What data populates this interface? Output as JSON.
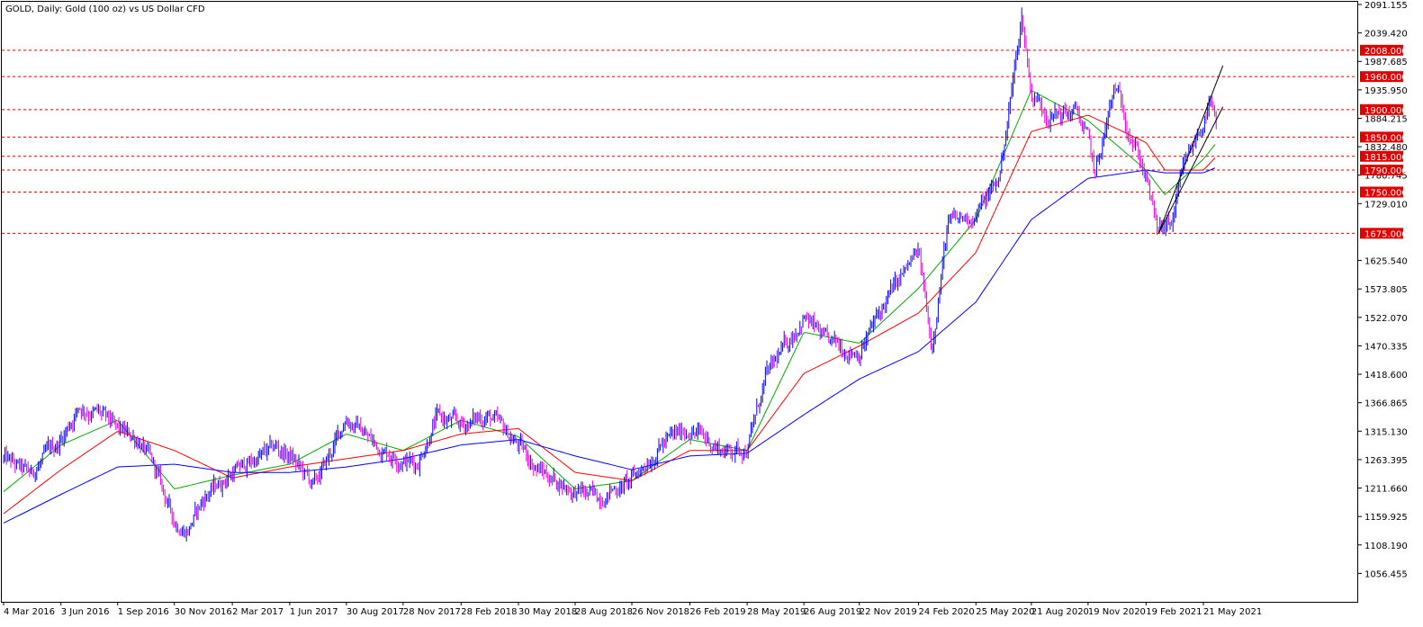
{
  "chart_data": {
    "type": "candlestick",
    "title": "GOLD, Daily:  Gold (100 oz) vs US Dollar CFD",
    "symbol": "GOLD",
    "timeframe": "Daily",
    "instrument": "Gold (100 oz) vs US Dollar CFD",
    "ylim": [
      1004.72,
      2091.155
    ],
    "y_ticks": [
      "2091.155",
      "2039.420",
      "1987.685",
      "1935.950",
      "1884.215",
      "1832.480",
      "1780.745",
      "1729.010",
      "1625.540",
      "1573.805",
      "1522.070",
      "1470.335",
      "1418.600",
      "1366.865",
      "1315.130",
      "1263.395",
      "1211.660",
      "1159.925",
      "1108.190",
      "1056.455"
    ],
    "x_ticks": [
      "4 Mar 2016",
      "3 Jun 2016",
      "1 Sep 2016",
      "30 Nov 2016",
      "2 Mar 2017",
      "1 Jun 2017",
      "30 Aug 2017",
      "28 Nov 2017",
      "28 Feb 2018",
      "30 May 2018",
      "28 Aug 2018",
      "26 Nov 2018",
      "26 Feb 2019",
      "28 May 2019",
      "26 Aug 2019",
      "22 Nov 2019",
      "24 Feb 2020",
      "25 May 2020",
      "21 Aug 2020",
      "19 Nov 2020",
      "19 Feb 2021",
      "21 May 2021"
    ],
    "price_series": {
      "name": "",
      "color": "#0000ff",
      "accent": "#e100e1",
      "points": [
        [
          "4 Mar 2016",
          1265
        ],
        [
          "15 Apr 2016",
          1235
        ],
        [
          "3 Jun 2016",
          1300
        ],
        [
          "1 Jul 2016",
          1360
        ],
        [
          "5 Aug 2016",
          1345
        ],
        [
          "1 Sep 2016",
          1315
        ],
        [
          "5 Oct 2016",
          1300
        ],
        [
          "1 Nov 2016",
          1240
        ],
        [
          "30 Nov 2016",
          1150
        ],
        [
          "20 Dec 2016",
          1135
        ],
        [
          "20 Jan 2017",
          1200
        ],
        [
          "2 Mar 2017",
          1240
        ],
        [
          "10 Apr 2017",
          1265
        ],
        [
          "10 May 2017",
          1285
        ],
        [
          "1 Jun 2017",
          1270
        ],
        [
          "10 Jul 2017",
          1215
        ],
        [
          "1 Aug 2017",
          1265
        ],
        [
          "30 Aug 2017",
          1340
        ],
        [
          "15 Sep 2017",
          1325
        ],
        [
          "20 Oct 2017",
          1285
        ],
        [
          "28 Nov 2017",
          1265
        ],
        [
          "20 Dec 2017",
          1255
        ],
        [
          "20 Jan 2018",
          1340
        ],
        [
          "28 Feb 2018",
          1325
        ],
        [
          "10 Apr 2018",
          1345
        ],
        [
          "30 May 2018",
          1290
        ],
        [
          "1 Jul 2018",
          1245
        ],
        [
          "28 Aug 2018",
          1205
        ],
        [
          "1 Oct 2018",
          1195
        ],
        [
          "26 Nov 2018",
          1225
        ],
        [
          "10 Jan 2019",
          1290
        ],
        [
          "26 Feb 2019",
          1320
        ],
        [
          "20 Apr 2019",
          1280
        ],
        [
          "28 May 2019",
          1285
        ],
        [
          "26 Jun 2019",
          1410
        ],
        [
          "26 Aug 2019",
          1525
        ],
        [
          "1 Oct 2019",
          1475
        ],
        [
          "22 Nov 2019",
          1460
        ],
        [
          "10 Jan 2020",
          1565
        ],
        [
          "24 Feb 2020",
          1640
        ],
        [
          "16 Mar 2020",
          1470
        ],
        [
          "10 Apr 2020",
          1690
        ],
        [
          "25 May 2020",
          1710
        ],
        [
          "1 Jul 2020",
          1775
        ],
        [
          "6 Aug 2020",
          2070
        ],
        [
          "21 Aug 2020",
          1930
        ],
        [
          "20 Sep 2020",
          1890
        ],
        [
          "1 Nov 2020",
          1895
        ],
        [
          "19 Nov 2020",
          1845
        ],
        [
          "30 Nov 2020",
          1780
        ],
        [
          "1 Jan 2021",
          1940
        ],
        [
          "19 Feb 2021",
          1780
        ],
        [
          "8 Mar 2021",
          1680
        ],
        [
          "31 Mar 2021",
          1690
        ],
        [
          "21 Apr 2021",
          1795
        ],
        [
          "21 May 2021",
          1880
        ],
        [
          "1 Jun 2021",
          1910
        ],
        [
          "11 Jun 2021",
          1860
        ]
      ]
    },
    "moving_averages": [
      {
        "name": "",
        "color": "#00aa00",
        "points": [
          [
            "4 Mar 2016",
            1205
          ],
          [
            "3 Jun 2016",
            1290
          ],
          [
            "1 Sep 2016",
            1335
          ],
          [
            "30 Nov 2016",
            1210
          ],
          [
            "2 Mar 2017",
            1235
          ],
          [
            "1 Jun 2017",
            1255
          ],
          [
            "30 Aug 2017",
            1310
          ],
          [
            "28 Nov 2017",
            1280
          ],
          [
            "28 Feb 2018",
            1335
          ],
          [
            "30 May 2018",
            1305
          ],
          [
            "28 Aug 2018",
            1210
          ],
          [
            "26 Nov 2018",
            1225
          ],
          [
            "26 Feb 2019",
            1300
          ],
          [
            "28 May 2019",
            1280
          ],
          [
            "26 Aug 2019",
            1495
          ],
          [
            "22 Nov 2019",
            1475
          ],
          [
            "24 Feb 2020",
            1575
          ],
          [
            "25 May 2020",
            1700
          ],
          [
            "21 Aug 2020",
            1935
          ],
          [
            "19 Nov 2020",
            1880
          ],
          [
            "19 Feb 2021",
            1790
          ],
          [
            "21 Mar 2021",
            1745
          ],
          [
            "21 May 2021",
            1810
          ],
          [
            "11 Jun 2021",
            1840
          ]
        ]
      },
      {
        "name": "",
        "color": "#ff0000",
        "points": [
          [
            "4 Mar 2016",
            1165
          ],
          [
            "3 Jun 2016",
            1245
          ],
          [
            "1 Sep 2016",
            1315
          ],
          [
            "30 Nov 2016",
            1280
          ],
          [
            "2 Mar 2017",
            1230
          ],
          [
            "1 Jun 2017",
            1250
          ],
          [
            "30 Aug 2017",
            1265
          ],
          [
            "28 Nov 2017",
            1280
          ],
          [
            "28 Feb 2018",
            1310
          ],
          [
            "30 May 2018",
            1320
          ],
          [
            "28 Aug 2018",
            1240
          ],
          [
            "26 Nov 2018",
            1225
          ],
          [
            "26 Feb 2019",
            1280
          ],
          [
            "28 May 2019",
            1280
          ],
          [
            "26 Aug 2019",
            1420
          ],
          [
            "22 Nov 2019",
            1470
          ],
          [
            "24 Feb 2020",
            1530
          ],
          [
            "25 May 2020",
            1640
          ],
          [
            "21 Aug 2020",
            1860
          ],
          [
            "19 Nov 2020",
            1890
          ],
          [
            "19 Feb 2021",
            1840
          ],
          [
            "21 Mar 2021",
            1790
          ],
          [
            "21 May 2021",
            1790
          ],
          [
            "11 Jun 2021",
            1815
          ]
        ]
      },
      {
        "name": "",
        "color": "#0000ff",
        "points": [
          [
            "4 Mar 2016",
            1148
          ],
          [
            "3 Jun 2016",
            1200
          ],
          [
            "1 Sep 2016",
            1250
          ],
          [
            "30 Nov 2016",
            1255
          ],
          [
            "2 Mar 2017",
            1240
          ],
          [
            "1 Jun 2017",
            1240
          ],
          [
            "30 Aug 2017",
            1250
          ],
          [
            "28 Nov 2017",
            1265
          ],
          [
            "28 Feb 2018",
            1290
          ],
          [
            "30 May 2018",
            1300
          ],
          [
            "28 Aug 2018",
            1270
          ],
          [
            "26 Nov 2018",
            1245
          ],
          [
            "26 Feb 2019",
            1270
          ],
          [
            "28 May 2019",
            1275
          ],
          [
            "26 Aug 2019",
            1345
          ],
          [
            "22 Nov 2019",
            1410
          ],
          [
            "24 Feb 2020",
            1460
          ],
          [
            "25 May 2020",
            1550
          ],
          [
            "21 Aug 2020",
            1700
          ],
          [
            "19 Nov 2020",
            1775
          ],
          [
            "19 Feb 2021",
            1790
          ],
          [
            "21 Mar 2021",
            1785
          ],
          [
            "21 May 2021",
            1785
          ],
          [
            "11 Jun 2021",
            1795
          ]
        ]
      }
    ],
    "horizontal_levels": [
      {
        "value": 2008,
        "label": "2008.000"
      },
      {
        "value": 1960,
        "label": "1960.000"
      },
      {
        "value": 1900,
        "label": "1900.000"
      },
      {
        "value": 1850,
        "label": "1850.000"
      },
      {
        "value": 1815,
        "label": "1815.000"
      },
      {
        "value": 1790,
        "label": "1790.000"
      },
      {
        "value": 1750,
        "label": "1750.000"
      },
      {
        "value": 1675,
        "label": "1675.000"
      }
    ],
    "level_color": "#e00000",
    "trendlines": [
      {
        "from": [
          "11 Mar 2021",
          1675
        ],
        "to": [
          "21 Jun 2021",
          1980
        ]
      },
      {
        "from": [
          "11 Mar 2021",
          1675
        ],
        "to": [
          "21 Jun 2021",
          1905
        ]
      }
    ],
    "grid": false
  }
}
